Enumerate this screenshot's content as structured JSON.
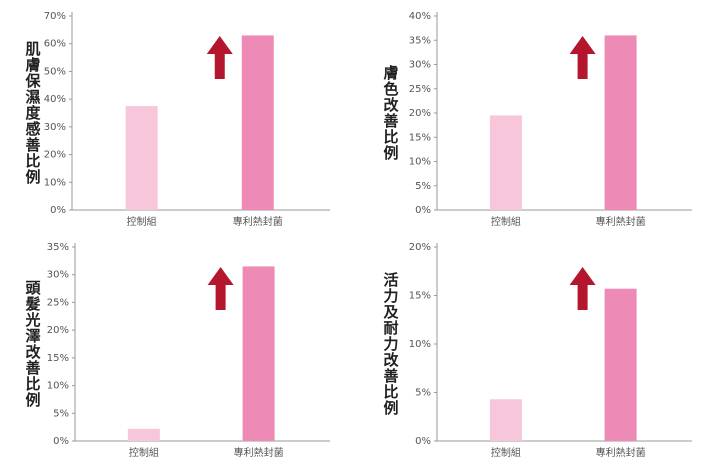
{
  "chart_data": [
    {
      "type": "bar",
      "ylabel": "肌膚保濕度感善比例",
      "categories": [
        "控制組",
        "專利熱封菌"
      ],
      "values": [
        37.5,
        63
      ],
      "colors": [
        "#f7c6da",
        "#ee8ab6"
      ],
      "ylim": [
        0,
        70
      ],
      "yticks": [
        {
          "value": 0,
          "label": "0%"
        },
        {
          "value": 10,
          "label": "10%"
        },
        {
          "value": 20,
          "label": "20%"
        },
        {
          "value": 30,
          "label": "30%"
        },
        {
          "value": 40,
          "label": "40%"
        },
        {
          "value": 50,
          "label": "50%"
        },
        {
          "value": 60,
          "label": "60%"
        },
        {
          "value": 70,
          "label": "70%"
        }
      ]
    },
    {
      "type": "bar",
      "ylabel": "膚色改善比例",
      "categories": [
        "控制組",
        "專利熱封菌"
      ],
      "values": [
        19.5,
        36
      ],
      "colors": [
        "#f7c6da",
        "#ee8ab6"
      ],
      "ylim": [
        0,
        40
      ],
      "yticks": [
        {
          "value": 0,
          "label": "0%"
        },
        {
          "value": 5,
          "label": "5%"
        },
        {
          "value": 10,
          "label": "10%"
        },
        {
          "value": 15,
          "label": "15%"
        },
        {
          "value": 20,
          "label": "20%"
        },
        {
          "value": 25,
          "label": "25%"
        },
        {
          "value": 30,
          "label": "30%"
        },
        {
          "value": 35,
          "label": "35%"
        },
        {
          "value": 40,
          "label": "40%"
        }
      ]
    },
    {
      "type": "bar",
      "ylabel": "頭髮光澤改善比例",
      "categories": [
        "控制組",
        "專利熱封菌"
      ],
      "values": [
        2.2,
        31.5
      ],
      "colors": [
        "#f7c6da",
        "#ee8ab6"
      ],
      "ylim": [
        0,
        35
      ],
      "yticks": [
        {
          "value": 0,
          "label": "0%"
        },
        {
          "value": 5,
          "label": "5%"
        },
        {
          "value": 10,
          "label": "10%"
        },
        {
          "value": 15,
          "label": "15%"
        },
        {
          "value": 20,
          "label": "20%"
        },
        {
          "value": 25,
          "label": "25%"
        },
        {
          "value": 30,
          "label": "30%"
        },
        {
          "value": 35,
          "label": "35%"
        }
      ]
    },
    {
      "type": "bar",
      "ylabel": "活力及耐力改善比例",
      "categories": [
        "控制組",
        "專利熱封菌"
      ],
      "values": [
        4.3,
        15.7
      ],
      "colors": [
        "#f7c6da",
        "#ee8ab6"
      ],
      "ylim": [
        0,
        20
      ],
      "yticks": [
        {
          "value": 0,
          "label": "0%"
        },
        {
          "value": 5,
          "label": "5%"
        },
        {
          "value": 10,
          "label": "10%"
        },
        {
          "value": 15,
          "label": "15%"
        },
        {
          "value": 20,
          "label": "20%"
        }
      ]
    }
  ]
}
